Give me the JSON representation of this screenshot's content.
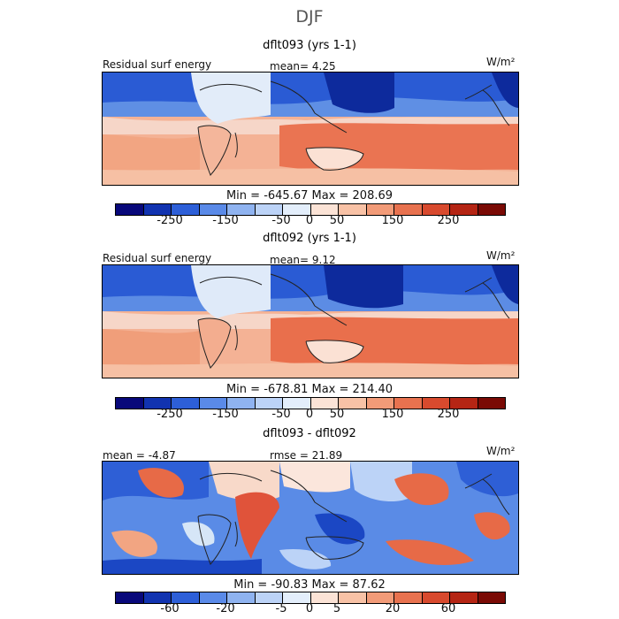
{
  "title": "DJF",
  "panels": [
    {
      "subtitle": "dflt093 (yrs 1-1)",
      "left_label": "Residual surf energy",
      "center_label": "mean=   4.25",
      "units": "W/m²",
      "minmax": "Min = -645.67 Max = 208.69",
      "ticks": [
        "-250",
        "-150",
        "-50",
        "0",
        "50",
        "150",
        "250"
      ]
    },
    {
      "subtitle": "dflt092 (yrs 1-1)",
      "left_label": "Residual surf energy",
      "center_label": "mean=   9.12",
      "units": "W/m²",
      "minmax": "Min = -678.81 Max = 214.40",
      "ticks": [
        "-250",
        "-150",
        "-50",
        "0",
        "50",
        "150",
        "250"
      ]
    },
    {
      "subtitle": "dflt093 - dflt092",
      "left_label": "mean =  -4.87",
      "center_label": "rmse =  21.89",
      "units": "W/m²",
      "minmax": "Min = -90.83 Max =  87.62",
      "ticks": [
        "-60",
        "-20",
        "-5",
        "0",
        "5",
        "20",
        "60"
      ]
    }
  ],
  "colorbar_colors": [
    "#08087a",
    "#1133b0",
    "#2d5fd8",
    "#5a8ae8",
    "#8fb3f0",
    "#bcd3f7",
    "#e3eefb",
    "#fbe3d6",
    "#f8c2a6",
    "#f29b78",
    "#e8724f",
    "#d84a2e",
    "#b52514",
    "#7a0a05"
  ],
  "colors": {
    "deep_blue": "#123fc2",
    "light_blue": "#d6e6f7",
    "light_red": "#f7c9ad",
    "red": "#e96a48",
    "coast": "#222222"
  }
}
